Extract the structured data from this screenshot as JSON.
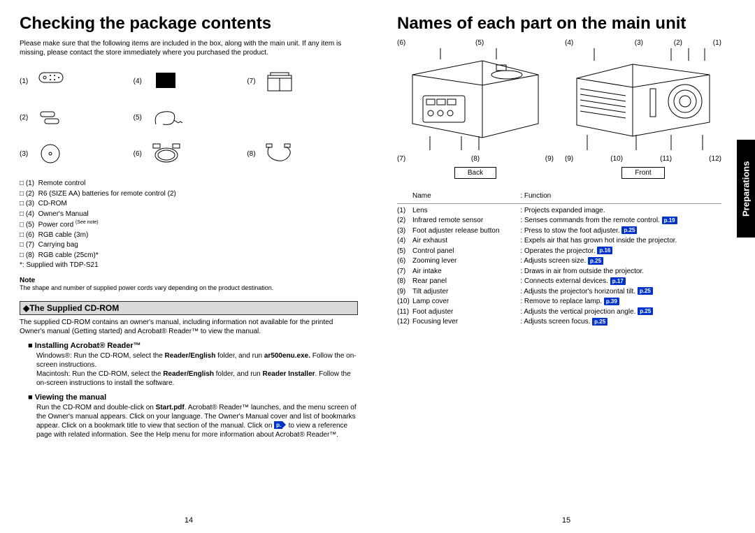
{
  "left": {
    "title": "Checking the package contents",
    "intro": "Please make sure that the following items are included in the box, along with the main unit. If any item is missing, please contact the store immediately where you purchased the product.",
    "grid_labels": [
      "(1)",
      "(4)",
      "(7)",
      "(2)",
      "(5)",
      "",
      "(3)",
      "(6)",
      "(8)"
    ],
    "checklist": [
      "□ (1)  Remote control",
      "□ (2)  R6 (SIZE AA) batteries for remote control (2)",
      "□ (3)  CD-ROM",
      "□ (4)  Owner's Manual",
      "□ (5)  Power cord (See note)",
      "□ (6)  RGB cable (3m)",
      "□ (7)  Carrying bag",
      "□ (8)  RGB cable (25cm)*",
      "*: Supplied with TDP-S21"
    ],
    "note_head": "Note",
    "note_text": "The shape and number of supplied power cords vary depending on the product destination.",
    "section_bar": "◆The Supplied CD-ROM",
    "cd_text": "The supplied CD-ROM contains an owner's manual, including information not available for the printed Owner's manual (Getting started) and Acrobat® Reader™ to view the manual.",
    "install_head": "■ Installing Acrobat® Reader™",
    "install_lines": [
      {
        "t": "Windows®: Run the CD-ROM, select the ",
        "b1": "Reader/English",
        "t2": " folder, and run ",
        "b2": "ar500enu.exe.",
        "t3": " Follow the on-screen instructions."
      },
      {
        "t": "Macintosh: Run the CD-ROM, select the ",
        "b1": "Reader/English",
        "t2": " folder, and run ",
        "b2": "Reader Installer",
        "t3": ". Follow the on-screen instructions to install the software."
      }
    ],
    "view_head": "■ Viewing the manual",
    "view_text_a": "Run the CD-ROM and double-click on ",
    "view_bold": "Start.pdf",
    "view_text_b": ". Acrobat® Reader™ launches, and the menu screen of the Owner's manual appears. Click on your language. The Owner's Manual cover and list of bookmarks appear. Click on a bookmark title to view that section of the manual. Click on ",
    "view_pref": "p.",
    "view_text_c": " to view a reference page with related information. See the Help menu for more information about Acrobat® Reader™.",
    "page_num": "14"
  },
  "right": {
    "title": "Names of each part on the main unit",
    "back_top": [
      "(6)",
      "(5)"
    ],
    "back_bottom": [
      "(7)",
      "(8)",
      "(9)"
    ],
    "front_top": [
      "(4)",
      "(3)",
      "(2)",
      "(1)"
    ],
    "front_bottom": [
      "(9)",
      "(10)",
      "(11)",
      "(12)"
    ],
    "back_label": "Back",
    "front_label": "Front",
    "table_head_name": "Name",
    "table_head_func": ": Function",
    "parts": [
      {
        "n": "(1)",
        "name": "Lens",
        "func": ": Projects expanded image."
      },
      {
        "n": "(2)",
        "name": "Infrared remote sensor",
        "func": ": Senses commands from the remote control.",
        "ref": "p.19"
      },
      {
        "n": "(3)",
        "name": "Foot adjuster release button",
        "func": ": Press to stow the foot adjuster.",
        "ref": "p.25"
      },
      {
        "n": "(4)",
        "name": "Air exhaust",
        "func": ": Expels air that has grown hot inside the projector."
      },
      {
        "n": "(5)",
        "name": "Control panel",
        "func": ": Operates the projector.",
        "ref": "p.16"
      },
      {
        "n": "(6)",
        "name": "Zooming lever",
        "func": ": Adjusts screen size.",
        "ref": "p.25"
      },
      {
        "n": "(7)",
        "name": "Air intake",
        "func": ": Draws in air from outside the projector."
      },
      {
        "n": "(8)",
        "name": "Rear panel",
        "func": ": Connects external devices.",
        "ref": "p.17"
      },
      {
        "n": "(9)",
        "name": "Tilt adjuster",
        "func": ": Adjusts the projector's horizontal tilt.",
        "ref": "p.25"
      },
      {
        "n": "(10)",
        "name": "Lamp cover",
        "func": ": Remove to replace lamp.",
        "ref": "p.39"
      },
      {
        "n": "(11)",
        "name": "Foot adjuster",
        "func": ": Adjusts the vertical projection angle.",
        "ref": "p.25"
      },
      {
        "n": "(12)",
        "name": "Focusing lever",
        "func": ": Adjusts screen focus.",
        "ref": "p.25"
      }
    ],
    "side_tab": "Preparations",
    "page_num": "15"
  },
  "colors": {
    "ref_bg": "#0033cc",
    "ref_fg": "#ffffff",
    "bar_bg": "#d9d9d9"
  }
}
